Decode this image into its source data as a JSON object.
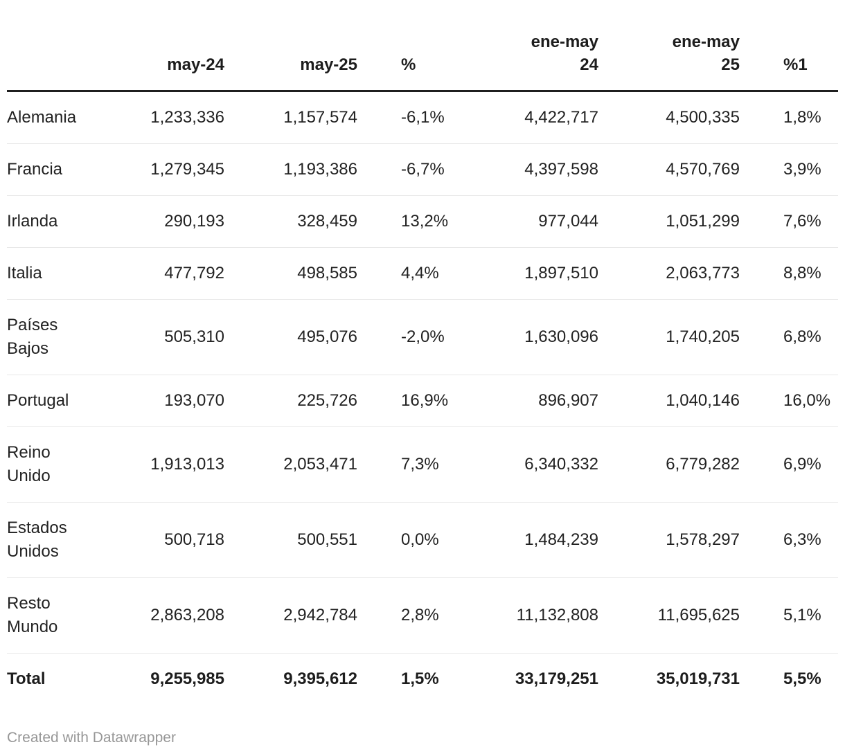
{
  "chart_data": {
    "type": "table",
    "title": "",
    "columns": [
      {
        "label": "",
        "label2": ""
      },
      {
        "label": "may-24",
        "label2": ""
      },
      {
        "label": "may-25",
        "label2": ""
      },
      {
        "label": "%",
        "label2": ""
      },
      {
        "label": "ene-may",
        "label2": "24"
      },
      {
        "label": "ene-may",
        "label2": "25"
      },
      {
        "label": "%1",
        "label2": ""
      }
    ],
    "rows": [
      [
        "Alemania",
        "1,233,336",
        "1,157,574",
        "-6,1%",
        "4,422,717",
        "4,500,335",
        "1,8%"
      ],
      [
        "Francia",
        "1,279,345",
        "1,193,386",
        "-6,7%",
        "4,397,598",
        "4,570,769",
        "3,9%"
      ],
      [
        "Irlanda",
        "290,193",
        "328,459",
        "13,2%",
        "977,044",
        "1,051,299",
        "7,6%"
      ],
      [
        "Italia",
        "477,792",
        "498,585",
        "4,4%",
        "1,897,510",
        "2,063,773",
        "8,8%"
      ],
      [
        "Países Bajos",
        "505,310",
        "495,076",
        "-2,0%",
        "1,630,096",
        "1,740,205",
        "6,8%"
      ],
      [
        "Portugal",
        "193,070",
        "225,726",
        "16,9%",
        "896,907",
        "1,040,146",
        "16,0%"
      ],
      [
        "Reino Unido",
        "1,913,013",
        "2,053,471",
        "7,3%",
        "6,340,332",
        "6,779,282",
        "6,9%"
      ],
      [
        "Estados Unidos",
        "500,718",
        "500,551",
        "0,0%",
        "1,484,239",
        "1,578,297",
        "6,3%"
      ],
      [
        "Resto Mundo",
        "2,863,208",
        "2,942,784",
        "2,8%",
        "11,132,808",
        "11,695,625",
        "5,1%"
      ],
      [
        "Total",
        "9,255,985",
        "9,395,612",
        "1,5%",
        "33,179,251",
        "35,019,731",
        "5,5%"
      ]
    ],
    "total_row_index": 9
  },
  "footer": {
    "credit": "Created with Datawrapper"
  },
  "colors": {
    "text": "#222222",
    "header_text": "#1d1d1d",
    "header_border": "#1f1f1f",
    "row_separator": "#e8e8e8",
    "footer_text": "#979797",
    "background": "#ffffff"
  }
}
